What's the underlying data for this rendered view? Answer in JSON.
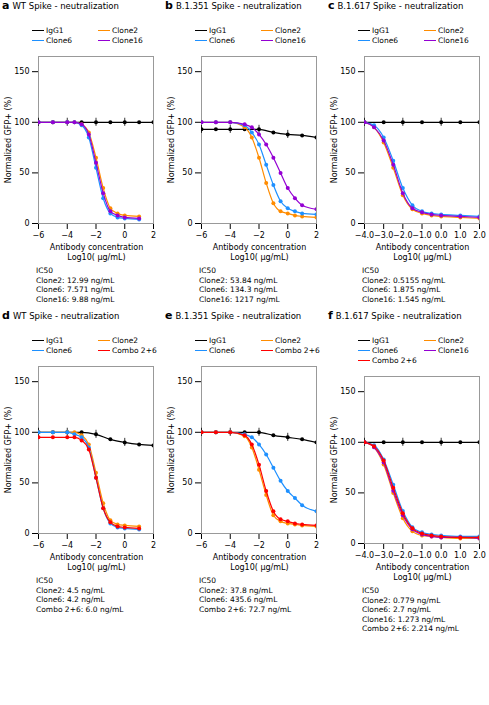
{
  "chart_data": [
    {
      "type": "line",
      "panel_label": "a",
      "title": "WT Spike - neutralization",
      "xlabel": "Antibody concentration\nLog10( μg/mL)",
      "ylabel": "Normalized GFP+ (%)",
      "xlim": [
        -6,
        2
      ],
      "xticks": [
        -6,
        -4,
        -2,
        0,
        2
      ],
      "ylim": [
        0,
        165
      ],
      "yticks": [
        0,
        50,
        100,
        150
      ],
      "annotation": [
        "IC50",
        "Clone2: 12.99 ng/mL",
        "Clone6: 7.571 ng/mL",
        "Clone16: 9.88 ng/mL"
      ],
      "series": [
        {
          "name": "IgG1",
          "color": "black",
          "marker": "o",
          "x": [
            -6,
            -5,
            -4,
            -3,
            -2,
            -1,
            0,
            1,
            2
          ],
          "values": [
            100,
            100,
            100,
            100,
            100,
            100,
            100,
            100,
            100
          ],
          "yerr": [
            4,
            null,
            4,
            null,
            4,
            null,
            4,
            null,
            4
          ]
        },
        {
          "name": "Clone2",
          "color": "#FF8C00",
          "marker": "o",
          "x": [
            -6,
            -5,
            -4,
            -3.5,
            -3,
            -2.5,
            -2,
            -1.5,
            -1,
            -0.5,
            0,
            1
          ],
          "values": [
            100,
            100,
            100,
            100,
            98,
            90,
            65,
            35,
            15,
            10,
            8,
            7
          ]
        },
        {
          "name": "Clone6",
          "color": "#1E90FF",
          "marker": "o",
          "x": [
            -6,
            -5,
            -4,
            -3.5,
            -3,
            -2.5,
            -2,
            -1.5,
            -1,
            -0.5,
            0,
            1
          ],
          "values": [
            100,
            100,
            100,
            100,
            97,
            85,
            55,
            25,
            10,
            6,
            5,
            4
          ]
        },
        {
          "name": "Clone16",
          "color": "#9400D3",
          "marker": "o",
          "x": [
            -6,
            -5,
            -4,
            -3.5,
            -3,
            -2.5,
            -2,
            -1.5,
            -1,
            -0.5,
            0,
            1
          ],
          "values": [
            100,
            100,
            100,
            100,
            98,
            88,
            60,
            30,
            12,
            8,
            6,
            5
          ]
        }
      ]
    },
    {
      "type": "line",
      "panel_label": "b",
      "title": "B.1.351 Spike - neutralization",
      "xlabel": "Antibody concentration\nLog10( μg/mL)",
      "ylabel": "Normalized GFP+ (%)",
      "xlim": [
        -6,
        2
      ],
      "xticks": [
        -6,
        -4,
        -2,
        0,
        2
      ],
      "ylim": [
        0,
        165
      ],
      "yticks": [
        0,
        50,
        100,
        150
      ],
      "annotation": [
        "IC50",
        "Clone2: 53.84 ng/mL",
        "Clone6: 134.3 ng/mL",
        "Clone16: 1217 ng/mL"
      ],
      "series": [
        {
          "name": "IgG1",
          "color": "black",
          "marker": "o",
          "x": [
            -6,
            -5,
            -4,
            -3,
            -2,
            -1,
            0,
            1,
            2
          ],
          "values": [
            93,
            93,
            93,
            93,
            93,
            90,
            88,
            87,
            85
          ],
          "yerr": [
            4,
            null,
            4,
            null,
            4,
            null,
            4,
            null,
            4
          ]
        },
        {
          "name": "Clone2",
          "color": "#FF8C00",
          "marker": "o",
          "x": [
            -6,
            -5,
            -4,
            -3,
            -2.5,
            -2,
            -1.5,
            -1,
            -0.5,
            0,
            0.5,
            1,
            2
          ],
          "values": [
            100,
            100,
            100,
            95,
            85,
            65,
            40,
            20,
            12,
            10,
            8,
            7,
            6
          ]
        },
        {
          "name": "Clone6",
          "color": "#1E90FF",
          "marker": "o",
          "x": [
            -6,
            -5,
            -4,
            -3,
            -2.5,
            -2,
            -1.5,
            -1,
            -0.5,
            0,
            0.5,
            1,
            2
          ],
          "values": [
            100,
            100,
            100,
            97,
            90,
            78,
            58,
            38,
            22,
            15,
            12,
            10,
            9
          ]
        },
        {
          "name": "Clone16",
          "color": "#9400D3",
          "marker": "o",
          "x": [
            -6,
            -5,
            -4,
            -3,
            -2.5,
            -2,
            -1.5,
            -1,
            -0.5,
            0,
            0.5,
            1,
            2
          ],
          "values": [
            100,
            100,
            100,
            98,
            95,
            88,
            78,
            65,
            50,
            35,
            25,
            18,
            14
          ]
        }
      ]
    },
    {
      "type": "line",
      "panel_label": "c",
      "title": "B.1.617 Spike - neutralization",
      "xlabel": "Antibody concentration\nLog10( μg/mL)",
      "ylabel": "Normalized GFP+ (%)",
      "xlim": [
        -4,
        2
      ],
      "xticks": [
        -4,
        -3,
        -2,
        -1,
        0,
        1,
        2
      ],
      "ylim": [
        0,
        165
      ],
      "yticks": [
        0,
        50,
        100,
        150
      ],
      "annotation": [
        "IC50",
        "Clone2: 0.5155 ng/mL",
        "Clone6: 1.875 ng/mL",
        "Clone16: 1.545 ng/mL"
      ],
      "series": [
        {
          "name": "IgG1",
          "color": "black",
          "marker": "o",
          "x": [
            -4,
            -3,
            -2,
            -1,
            0,
            1,
            2
          ],
          "values": [
            100,
            100,
            100,
            100,
            100,
            100,
            100
          ],
          "yerr": [
            4,
            null,
            4,
            null,
            4,
            null,
            4
          ]
        },
        {
          "name": "Clone2",
          "color": "#FF8C00",
          "marker": "o",
          "x": [
            -4,
            -3.5,
            -3,
            -2.5,
            -2,
            -1.5,
            -1,
            -0.5,
            0,
            1,
            2
          ],
          "values": [
            100,
            95,
            80,
            55,
            28,
            14,
            10,
            8,
            7,
            6,
            5
          ]
        },
        {
          "name": "Clone6",
          "color": "#1E90FF",
          "marker": "o",
          "x": [
            -4,
            -3.5,
            -3,
            -2.5,
            -2,
            -1.5,
            -1,
            -0.5,
            0,
            1,
            2
          ],
          "values": [
            100,
            97,
            85,
            62,
            35,
            18,
            12,
            10,
            9,
            8,
            7
          ]
        },
        {
          "name": "Clone16",
          "color": "#9400D3",
          "marker": "o",
          "x": [
            -4,
            -3.5,
            -3,
            -2.5,
            -2,
            -1.5,
            -1,
            -0.5,
            0,
            1,
            2
          ],
          "values": [
            100,
            95,
            82,
            58,
            30,
            15,
            11,
            9,
            8,
            7,
            6
          ]
        }
      ]
    },
    {
      "type": "line",
      "panel_label": "d",
      "title": "WT Spike - neutralization",
      "xlabel": "Antibody concentration\nLog10( μg/mL)",
      "ylabel": "Normalized GFP+ (%)",
      "xlim": [
        -6,
        2
      ],
      "xticks": [
        -6,
        -4,
        -2,
        0,
        2
      ],
      "ylim": [
        0,
        165
      ],
      "yticks": [
        0,
        50,
        100,
        150
      ],
      "annotation": [
        "IC50",
        "Clone2: 4.5 ng/mL",
        "Clone6: 4.2 ng/mL",
        "Combo 2+6: 6.0 ng/mL"
      ],
      "series": [
        {
          "name": "IgG1",
          "color": "black",
          "marker": "o",
          "x": [
            -6,
            -5,
            -4,
            -3,
            -2,
            -1,
            0,
            1,
            2
          ],
          "values": [
            100,
            100,
            100,
            100,
            98,
            93,
            90,
            88,
            87
          ],
          "yerr": [
            4,
            null,
            4,
            null,
            4,
            null,
            4,
            null,
            4
          ]
        },
        {
          "name": "Clone2",
          "color": "#FF8C00",
          "marker": "o",
          "x": [
            -6,
            -5,
            -4,
            -3.5,
            -3,
            -2.5,
            -2,
            -1.5,
            -1,
            -0.5,
            0,
            1
          ],
          "values": [
            100,
            100,
            100,
            100,
            97,
            88,
            60,
            30,
            13,
            9,
            8,
            7
          ]
        },
        {
          "name": "Clone6",
          "color": "#1E90FF",
          "marker": "o",
          "x": [
            -6,
            -5,
            -4,
            -3.5,
            -3,
            -2.5,
            -2,
            -1.5,
            -1,
            -0.5,
            0,
            1
          ],
          "values": [
            100,
            100,
            100,
            98,
            95,
            85,
            55,
            25,
            10,
            6,
            5,
            4
          ]
        },
        {
          "name": "Combo 2+6",
          "color": "#FF0000",
          "marker": "o",
          "x": [
            -6,
            -5,
            -4,
            -3.5,
            -3,
            -2.5,
            -2,
            -1.5,
            -1,
            -0.5,
            0,
            1
          ],
          "values": [
            95,
            95,
            95,
            95,
            92,
            83,
            55,
            25,
            11,
            7,
            6,
            5
          ]
        }
      ]
    },
    {
      "type": "line",
      "panel_label": "e",
      "title": "B.1.351 Spike - neutralization",
      "xlabel": "Antibody concentration\nLog10( μg/mL)",
      "ylabel": "Normalized GFP+ (%)",
      "xlim": [
        -6,
        2
      ],
      "xticks": [
        -6,
        -4,
        -2,
        0,
        2
      ],
      "ylim": [
        0,
        165
      ],
      "yticks": [
        0,
        50,
        100,
        150
      ],
      "annotation": [
        "IC50",
        "Clone2: 37.8 ng/mL",
        "Clone6: 435.6 ng/mL",
        "Combo 2+6: 72.7 ng/mL"
      ],
      "series": [
        {
          "name": "IgG1",
          "color": "black",
          "marker": "o",
          "x": [
            -6,
            -5,
            -4,
            -3,
            -2,
            -1,
            0,
            1,
            2
          ],
          "values": [
            100,
            100,
            100,
            100,
            100,
            97,
            95,
            93,
            90
          ],
          "yerr": [
            4,
            null,
            4,
            null,
            4,
            null,
            4,
            null,
            4
          ]
        },
        {
          "name": "Clone2",
          "color": "#FF8C00",
          "marker": "o",
          "x": [
            -6,
            -5,
            -4,
            -3,
            -2.5,
            -2,
            -1.5,
            -1,
            -0.5,
            0,
            0.5,
            1,
            2
          ],
          "values": [
            100,
            100,
            100,
            96,
            85,
            63,
            38,
            18,
            12,
            10,
            9,
            8,
            7
          ]
        },
        {
          "name": "Clone6",
          "color": "#1E90FF",
          "marker": "o",
          "x": [
            -6,
            -5,
            -4,
            -3,
            -2.5,
            -2,
            -1.5,
            -1,
            -0.5,
            0,
            0.5,
            1,
            2
          ],
          "values": [
            100,
            100,
            100,
            98,
            95,
            88,
            78,
            65,
            52,
            42,
            35,
            28,
            22
          ]
        },
        {
          "name": "Combo 2+6",
          "color": "#FF0000",
          "marker": "o",
          "x": [
            -6,
            -5,
            -4,
            -3,
            -2.5,
            -2,
            -1.5,
            -1,
            -0.5,
            0,
            0.5,
            1,
            2
          ],
          "values": [
            100,
            100,
            100,
            97,
            88,
            68,
            42,
            22,
            14,
            12,
            10,
            9,
            8
          ]
        }
      ]
    },
    {
      "type": "line",
      "panel_label": "f",
      "title": "B.1.617 Spike - neutralization",
      "xlabel": "Antibody concentration\nLog10( μg/mL)",
      "ylabel": "Normalized GFP+ (%)",
      "xlim": [
        -4,
        2
      ],
      "xticks": [
        -4,
        -3,
        -2,
        -1,
        0,
        1,
        2
      ],
      "ylim": [
        0,
        165
      ],
      "yticks": [
        0,
        50,
        100,
        150
      ],
      "annotation": [
        "IC50",
        "Clone2: 0.779 ng/mL",
        "Clone6: 2.7 ng/mL",
        "Clone16: 1.273 ng/mL",
        "Combo 2+6: 2.214 ng/mL"
      ],
      "series": [
        {
          "name": "IgG1",
          "color": "black",
          "marker": "o",
          "x": [
            -4,
            -3,
            -2,
            -1,
            0,
            1,
            2
          ],
          "values": [
            100,
            100,
            100,
            100,
            100,
            100,
            100
          ],
          "yerr": [
            4,
            null,
            4,
            null,
            4,
            null,
            4
          ]
        },
        {
          "name": "Clone2",
          "color": "#FF8C00",
          "marker": "o",
          "x": [
            -4,
            -3.5,
            -3,
            -2.5,
            -2,
            -1.5,
            -1,
            -0.5,
            0,
            1,
            2
          ],
          "values": [
            100,
            95,
            78,
            50,
            25,
            12,
            8,
            7,
            6,
            5,
            5
          ]
        },
        {
          "name": "Clone6",
          "color": "#1E90FF",
          "marker": "o",
          "x": [
            -4,
            -3.5,
            -3,
            -2.5,
            -2,
            -1.5,
            -1,
            -0.5,
            0,
            1,
            2
          ],
          "values": [
            100,
            97,
            83,
            58,
            32,
            16,
            11,
            9,
            8,
            7,
            7
          ]
        },
        {
          "name": "Clone16",
          "color": "#9400D3",
          "marker": "o",
          "x": [
            -4,
            -3.5,
            -3,
            -2.5,
            -2,
            -1.5,
            -1,
            -0.5,
            0,
            1,
            2
          ],
          "values": [
            100,
            95,
            80,
            52,
            28,
            14,
            9,
            7,
            6,
            6,
            5
          ]
        },
        {
          "name": "Combo 2+6",
          "color": "#FF0000",
          "marker": "o",
          "x": [
            -4,
            -3.5,
            -3,
            -2.5,
            -2,
            -1.5,
            -1,
            -0.5,
            0,
            1,
            2
          ],
          "values": [
            100,
            96,
            82,
            55,
            30,
            15,
            10,
            8,
            7,
            6,
            6
          ]
        }
      ]
    }
  ]
}
